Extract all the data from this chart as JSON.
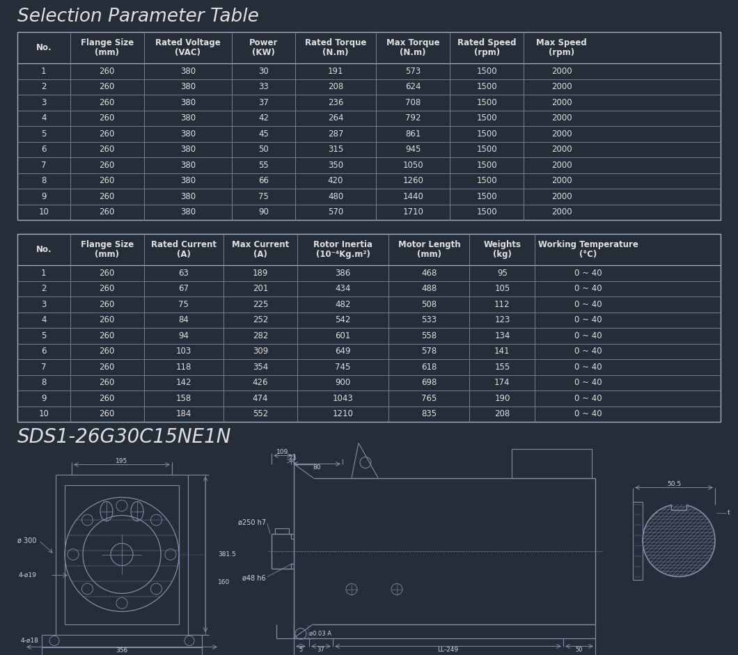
{
  "bg_color": "#252d38",
  "text_color": "#e0e0e0",
  "title": "Selection Parameter Table",
  "subtitle": "SDS1-26G30C15NE1N",
  "table1_headers_line1": [
    "No.",
    "Flange Size",
    "Rated Voltage",
    "Power",
    "Rated Torque",
    "Max Torque",
    "Rated Speed",
    "Max Speed"
  ],
  "table1_headers_line2": [
    "",
    "(mm)",
    "(VAC)",
    "(KW)",
    "(N.m)",
    "(N.m)",
    "(rpm)",
    "(rpm)"
  ],
  "table1_data": [
    [
      "1",
      "260",
      "380",
      "30",
      "191",
      "573",
      "1500",
      "2000"
    ],
    [
      "2",
      "260",
      "380",
      "33",
      "208",
      "624",
      "1500",
      "2000"
    ],
    [
      "3",
      "260",
      "380",
      "37",
      "236",
      "708",
      "1500",
      "2000"
    ],
    [
      "4",
      "260",
      "380",
      "42",
      "264",
      "792",
      "1500",
      "2000"
    ],
    [
      "5",
      "260",
      "380",
      "45",
      "287",
      "861",
      "1500",
      "2000"
    ],
    [
      "6",
      "260",
      "380",
      "50",
      "315",
      "945",
      "1500",
      "2000"
    ],
    [
      "7",
      "260",
      "380",
      "55",
      "350",
      "1050",
      "1500",
      "2000"
    ],
    [
      "8",
      "260",
      "380",
      "66",
      "420",
      "1260",
      "1500",
      "2000"
    ],
    [
      "9",
      "260",
      "380",
      "75",
      "480",
      "1440",
      "1500",
      "2000"
    ],
    [
      "10",
      "260",
      "380",
      "90",
      "570",
      "1710",
      "1500",
      "2000"
    ]
  ],
  "table2_headers_line1": [
    "No.",
    "Flange Size",
    "Rated Current",
    "Max Current",
    "Rotor Inertia",
    "Motor Length",
    "Weights",
    "Working Temperature"
  ],
  "table2_headers_line2": [
    "",
    "(mm)",
    "(A)",
    "(A)",
    "(10⁻⁴Kg.m²)",
    "(mm)",
    "(kg)",
    "(°C)"
  ],
  "table2_data": [
    [
      "1",
      "260",
      "63",
      "189",
      "386",
      "468",
      "95",
      "0 ~ 40"
    ],
    [
      "2",
      "260",
      "67",
      "201",
      "434",
      "488",
      "105",
      "0 ~ 40"
    ],
    [
      "3",
      "260",
      "75",
      "225",
      "482",
      "508",
      "112",
      "0 ~ 40"
    ],
    [
      "4",
      "260",
      "84",
      "252",
      "542",
      "533",
      "123",
      "0 ~ 40"
    ],
    [
      "5",
      "260",
      "94",
      "282",
      "601",
      "558",
      "134",
      "0 ~ 40"
    ],
    [
      "6",
      "260",
      "103",
      "309",
      "649",
      "578",
      "141",
      "0 ~ 40"
    ],
    [
      "7",
      "260",
      "118",
      "354",
      "745",
      "618",
      "155",
      "0 ~ 40"
    ],
    [
      "8",
      "260",
      "142",
      "426",
      "900",
      "698",
      "174",
      "0 ~ 40"
    ],
    [
      "9",
      "260",
      "158",
      "474",
      "1043",
      "765",
      "190",
      "0 ~ 40"
    ],
    [
      "10",
      "260",
      "184",
      "552",
      "1210",
      "835",
      "208",
      "0 ~ 40"
    ]
  ],
  "t1_col_ratios": [
    0.075,
    0.105,
    0.125,
    0.09,
    0.115,
    0.105,
    0.105,
    0.108
  ],
  "t2_col_ratios": [
    0.075,
    0.105,
    0.113,
    0.105,
    0.13,
    0.115,
    0.093,
    0.152
  ],
  "line_color": "#7a8fa8",
  "header_line_color": "#a0b4c8",
  "draw_line_color": "#8090aa",
  "draw_text_color": "#d0d8e8"
}
